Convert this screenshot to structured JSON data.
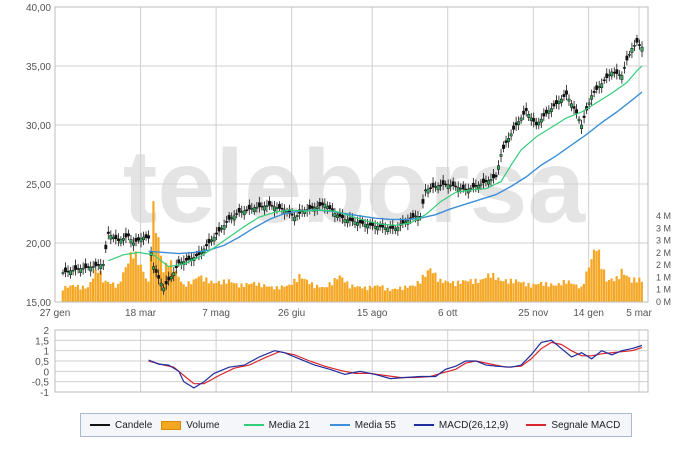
{
  "watermark": "teleborsa",
  "legend": {
    "candles": "Candele",
    "volume": "Volume",
    "ma21": "Media 21",
    "ma55": "Media 55",
    "macd": "MACD(26,12,9)",
    "signal": "Segnale MACD"
  },
  "colors": {
    "candle": "#111111",
    "volume": "#f5a623",
    "ma21": "#33cc77",
    "ma55": "#3c8fd6",
    "macd": "#1f2d9c",
    "signal": "#d9262c",
    "grid": "#d0d0d0",
    "axis_text": "#555555"
  },
  "chart_data": [
    {
      "type": "candlestick",
      "title": "",
      "y_axis": {
        "range": [
          15,
          40
        ],
        "ticks": [
          "40,00",
          "35,00",
          "30,00",
          "25,00",
          "20,00",
          "15,00"
        ]
      },
      "volume_axis": {
        "range": [
          0,
          4
        ],
        "unit": "M",
        "ticks": [
          "4 M",
          "3 M",
          "3 M",
          "2 M",
          "2 M",
          "1 M",
          "1 M",
          "0 M"
        ]
      },
      "x_ticks": [
        "27 gen",
        "18 mar",
        "7 mag",
        "26 giu",
        "15 ago",
        "6 ott",
        "25 nov",
        "14 gen",
        "5 mar"
      ],
      "price_path": [
        [
          0,
          17.5
        ],
        [
          3,
          17.8
        ],
        [
          6,
          18.0
        ],
        [
          8,
          18.2
        ],
        [
          9,
          20.8
        ],
        [
          11,
          20.2
        ],
        [
          13,
          20.6
        ],
        [
          14,
          20.0
        ],
        [
          16,
          20.5
        ],
        [
          17,
          20.4
        ],
        [
          18,
          18.0
        ],
        [
          19,
          17.0
        ],
        [
          20,
          16.2
        ],
        [
          22,
          17.5
        ],
        [
          23,
          18.3
        ],
        [
          25,
          18.6
        ],
        [
          27,
          19.0
        ],
        [
          29,
          20.0
        ],
        [
          31,
          21.0
        ],
        [
          33,
          22.0
        ],
        [
          35,
          22.6
        ],
        [
          38,
          23.0
        ],
        [
          41,
          23.2
        ],
        [
          44,
          22.8
        ],
        [
          46,
          22.2
        ],
        [
          48,
          22.8
        ],
        [
          50,
          23.0
        ],
        [
          52,
          23.3
        ],
        [
          54,
          22.5
        ],
        [
          56,
          22.0
        ],
        [
          58,
          21.8
        ],
        [
          61,
          21.5
        ],
        [
          64,
          21.3
        ],
        [
          66,
          21.2
        ],
        [
          68,
          21.8
        ],
        [
          70,
          22.3
        ],
        [
          71,
          22.2
        ],
        [
          72,
          24.5
        ],
        [
          74,
          24.8
        ],
        [
          76,
          25.0
        ],
        [
          78,
          24.8
        ],
        [
          80,
          24.5
        ],
        [
          82,
          24.8
        ],
        [
          84,
          25.2
        ],
        [
          86,
          25.6
        ],
        [
          87,
          27.5
        ],
        [
          88,
          28.5
        ],
        [
          90,
          30.0
        ],
        [
          92,
          31.2
        ],
        [
          94,
          30.0
        ],
        [
          96,
          31.0
        ],
        [
          98,
          31.8
        ],
        [
          100,
          32.6
        ],
        [
          102,
          31.0
        ],
        [
          103,
          30.0
        ],
        [
          105,
          32.5
        ],
        [
          107,
          33.5
        ],
        [
          109,
          34.5
        ],
        [
          111,
          34.2
        ],
        [
          112,
          35.5
        ],
        [
          113,
          36.5
        ],
        [
          114,
          37.0
        ],
        [
          115,
          36.6
        ]
      ],
      "ma21_path": [
        [
          9,
          18.5
        ],
        [
          12,
          19.0
        ],
        [
          15,
          19.2
        ],
        [
          18,
          19.0
        ],
        [
          21,
          18.0
        ],
        [
          24,
          18.2
        ],
        [
          27,
          18.8
        ],
        [
          30,
          19.6
        ],
        [
          33,
          20.5
        ],
        [
          36,
          21.4
        ],
        [
          39,
          22.2
        ],
        [
          42,
          22.6
        ],
        [
          45,
          22.8
        ],
        [
          48,
          22.7
        ],
        [
          51,
          22.8
        ],
        [
          54,
          22.7
        ],
        [
          57,
          22.3
        ],
        [
          60,
          21.9
        ],
        [
          63,
          21.6
        ],
        [
          66,
          21.5
        ],
        [
          69,
          21.7
        ],
        [
          72,
          22.4
        ],
        [
          75,
          23.5
        ],
        [
          78,
          24.3
        ],
        [
          81,
          24.5
        ],
        [
          84,
          24.6
        ],
        [
          87,
          25.2
        ],
        [
          89,
          26.6
        ],
        [
          91,
          27.9
        ],
        [
          94,
          29.0
        ],
        [
          97,
          29.8
        ],
        [
          100,
          30.6
        ],
        [
          103,
          31.1
        ],
        [
          106,
          31.9
        ],
        [
          109,
          32.7
        ],
        [
          112,
          33.6
        ],
        [
          114,
          34.6
        ],
        [
          115,
          35.0
        ]
      ],
      "ma55_path": [
        [
          17,
          19.3
        ],
        [
          20,
          19.2
        ],
        [
          23,
          19.1
        ],
        [
          26,
          19.2
        ],
        [
          29,
          19.4
        ],
        [
          32,
          19.8
        ],
        [
          35,
          20.5
        ],
        [
          38,
          21.3
        ],
        [
          41,
          22.0
        ],
        [
          44,
          22.5
        ],
        [
          47,
          22.7
        ],
        [
          50,
          22.8
        ],
        [
          53,
          22.7
        ],
        [
          56,
          22.5
        ],
        [
          59,
          22.3
        ],
        [
          62,
          22.1
        ],
        [
          65,
          22.0
        ],
        [
          68,
          22.0
        ],
        [
          71,
          22.1
        ],
        [
          74,
          22.4
        ],
        [
          77,
          22.9
        ],
        [
          80,
          23.3
        ],
        [
          83,
          23.7
        ],
        [
          86,
          24.1
        ],
        [
          89,
          24.8
        ],
        [
          92,
          25.6
        ],
        [
          95,
          26.6
        ],
        [
          98,
          27.4
        ],
        [
          101,
          28.3
        ],
        [
          104,
          29.2
        ],
        [
          107,
          30.2
        ],
        [
          110,
          31.1
        ],
        [
          113,
          32.1
        ],
        [
          115,
          32.8
        ]
      ],
      "volume_bars": [
        [
          0,
          0.6
        ],
        [
          2,
          0.7
        ],
        [
          5,
          0.6
        ],
        [
          7,
          1.5
        ],
        [
          8,
          0.9
        ],
        [
          11,
          0.7
        ],
        [
          14,
          2.2
        ],
        [
          17,
          0.8
        ],
        [
          18,
          3.9
        ],
        [
          20,
          1.3
        ],
        [
          21,
          1.8
        ],
        [
          24,
          0.7
        ],
        [
          26,
          0.9
        ],
        [
          27,
          1.1
        ],
        [
          30,
          0.8
        ],
        [
          33,
          0.9
        ],
        [
          35,
          0.7
        ],
        [
          38,
          0.8
        ],
        [
          42,
          0.6
        ],
        [
          45,
          0.7
        ],
        [
          47,
          1.1
        ],
        [
          50,
          0.7
        ],
        [
          52,
          0.6
        ],
        [
          55,
          1.1
        ],
        [
          57,
          0.7
        ],
        [
          60,
          0.6
        ],
        [
          63,
          0.7
        ],
        [
          65,
          0.5
        ],
        [
          67,
          0.6
        ],
        [
          70,
          0.7
        ],
        [
          73,
          1.4
        ],
        [
          75,
          0.9
        ],
        [
          78,
          0.8
        ],
        [
          80,
          0.9
        ],
        [
          83,
          0.9
        ],
        [
          85,
          1.2
        ],
        [
          87,
          0.9
        ],
        [
          90,
          0.9
        ],
        [
          93,
          0.7
        ],
        [
          95,
          0.8
        ],
        [
          98,
          0.7
        ],
        [
          100,
          0.9
        ],
        [
          103,
          0.6
        ],
        [
          106,
          2.4
        ],
        [
          108,
          0.9
        ],
        [
          110,
          1.0
        ],
        [
          111,
          1.3
        ],
        [
          113,
          0.9
        ],
        [
          114,
          1.0
        ],
        [
          115,
          0.9
        ]
      ]
    },
    {
      "type": "line",
      "title": "",
      "y_axis": {
        "range": [
          -1,
          2
        ],
        "ticks": [
          "2",
          "1,5",
          "1",
          "0,5",
          "0",
          "-0,5",
          "-1"
        ]
      },
      "series": [
        {
          "name": "MACD(26,12,9)",
          "path": [
            [
              17,
              0.55
            ],
            [
              19,
              0.35
            ],
            [
              21,
              0.3
            ],
            [
              23,
              0.0
            ],
            [
              24,
              -0.5
            ],
            [
              26,
              -0.8
            ],
            [
              28,
              -0.5
            ],
            [
              30,
              -0.1
            ],
            [
              33,
              0.2
            ],
            [
              36,
              0.3
            ],
            [
              39,
              0.7
            ],
            [
              42,
              1.0
            ],
            [
              44,
              0.9
            ],
            [
              47,
              0.6
            ],
            [
              50,
              0.3
            ],
            [
              53,
              0.1
            ],
            [
              56,
              -0.15
            ],
            [
              59,
              0.0
            ],
            [
              62,
              -0.15
            ],
            [
              65,
              -0.35
            ],
            [
              68,
              -0.3
            ],
            [
              71,
              -0.25
            ],
            [
              74,
              -0.25
            ],
            [
              76,
              0.1
            ],
            [
              78,
              0.25
            ],
            [
              80,
              0.5
            ],
            [
              82,
              0.5
            ],
            [
              84,
              0.3
            ],
            [
              86,
              0.25
            ],
            [
              89,
              0.2
            ],
            [
              91,
              0.3
            ],
            [
              93,
              0.8
            ],
            [
              95,
              1.4
            ],
            [
              97,
              1.5
            ],
            [
              99,
              1.1
            ],
            [
              101,
              0.7
            ],
            [
              103,
              0.9
            ],
            [
              105,
              0.6
            ],
            [
              107,
              1.0
            ],
            [
              109,
              0.8
            ],
            [
              111,
              1.0
            ],
            [
              113,
              1.1
            ],
            [
              115,
              1.25
            ]
          ]
        },
        {
          "name": "Segnale MACD",
          "path": [
            [
              17,
              0.5
            ],
            [
              20,
              0.3
            ],
            [
              22,
              0.2
            ],
            [
              24,
              -0.2
            ],
            [
              26,
              -0.6
            ],
            [
              28,
              -0.6
            ],
            [
              31,
              -0.2
            ],
            [
              34,
              0.15
            ],
            [
              37,
              0.3
            ],
            [
              40,
              0.65
            ],
            [
              43,
              0.95
            ],
            [
              46,
              0.8
            ],
            [
              49,
              0.5
            ],
            [
              52,
              0.25
            ],
            [
              55,
              0.05
            ],
            [
              58,
              -0.1
            ],
            [
              61,
              -0.1
            ],
            [
              64,
              -0.2
            ],
            [
              67,
              -0.3
            ],
            [
              70,
              -0.3
            ],
            [
              73,
              -0.25
            ],
            [
              75,
              -0.1
            ],
            [
              78,
              0.1
            ],
            [
              80,
              0.4
            ],
            [
              82,
              0.5
            ],
            [
              85,
              0.35
            ],
            [
              88,
              0.2
            ],
            [
              91,
              0.25
            ],
            [
              93,
              0.6
            ],
            [
              95,
              1.1
            ],
            [
              97,
              1.4
            ],
            [
              99,
              1.3
            ],
            [
              101,
              1.0
            ],
            [
              103,
              0.75
            ],
            [
              105,
              0.75
            ],
            [
              107,
              0.85
            ],
            [
              109,
              0.9
            ],
            [
              111,
              0.95
            ],
            [
              113,
              1.0
            ],
            [
              115,
              1.15
            ]
          ]
        }
      ]
    }
  ]
}
